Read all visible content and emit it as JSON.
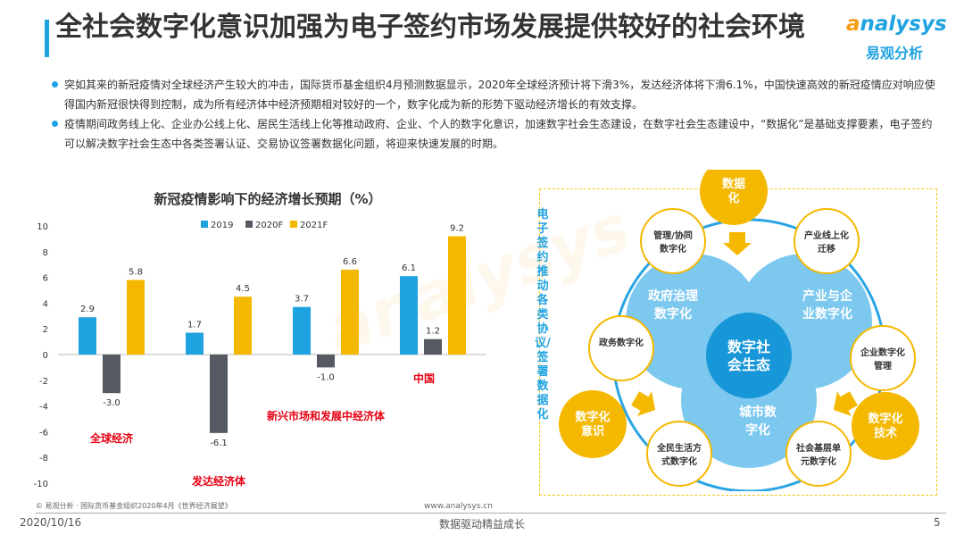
{
  "title": "全社会数字化意识加强为电子签约市场发展提供较好的社会环境",
  "logo": {
    "brand": "analysys",
    "sub": "易观分析"
  },
  "bullets": [
    "突如其来的新冠疫情对全球经济产生较大的冲击，国际货币基金组织4月预测数据显示，2020年全球经济预计将下滑3%，发达经济体将下滑6.1%，中国快速高效的新冠疫情应对响应使得国内新冠很快得到控制，成为所有经济体中经济预期相对较好的一个，数字化成为新的形势下驱动经济增长的有效支撑。",
    "疫情期间政务线上化、企业办公线上化、居民生活线上化等推动政府、企业、个人的数字化意识，加速数字社会生态建设，在数字社会生态建设中，“数据化”是基础支撑要素，电子签约可以解决数字社会生态中各类签署认证、交易协议签署数据化问题，将迎来快速发展的时期。"
  ],
  "chart_data": {
    "type": "bar",
    "title": "新冠疫情影响下的经济增长预期（%）",
    "categories": [
      "全球经济",
      "发达经济体",
      "新兴市场和发展中经济体",
      "中国"
    ],
    "series": [
      {
        "name": "2019",
        "values": [
          2.9,
          1.7,
          3.7,
          6.1
        ],
        "color": "#1fa3e0"
      },
      {
        "name": "2020F",
        "values": [
          -3.0,
          -6.1,
          -1.0,
          1.2
        ],
        "color": "#555a62"
      },
      {
        "name": "2021F",
        "values": [
          5.8,
          4.5,
          6.6,
          9.2
        ],
        "color": "#f5b800"
      }
    ],
    "ylim": [
      -10,
      10
    ],
    "yticks": [
      "10",
      "8",
      "6",
      "4",
      "2",
      "0",
      "-2",
      "-4",
      "-6",
      "-8",
      "-10"
    ],
    "category_label_color": "#e60012",
    "grid": false,
    "legend": "top"
  },
  "diagram": {
    "vertical_label": "电子签约推动各类协议/签署数据化",
    "center": "数字社会生态",
    "petals": [
      "政府治理数字化",
      "产业与企业数字化",
      "城市数字化"
    ],
    "drivers": [
      "数据化",
      "数字化意识",
      "数字化技术"
    ],
    "nodes": [
      "管理/协同数字化",
      "产业线上化迁移",
      "政务数字化",
      "企业数字化管理",
      "全民生活方式数字化",
      "社会基层单元数字化"
    ]
  },
  "footer": {
    "source": "© 易观分析 · 国际货币基金组织2020年4月《世界经济展望》",
    "url": "www.analysys.cn",
    "date": "2020/10/16",
    "slogan": "数据驱动精益成长",
    "page": "5"
  }
}
